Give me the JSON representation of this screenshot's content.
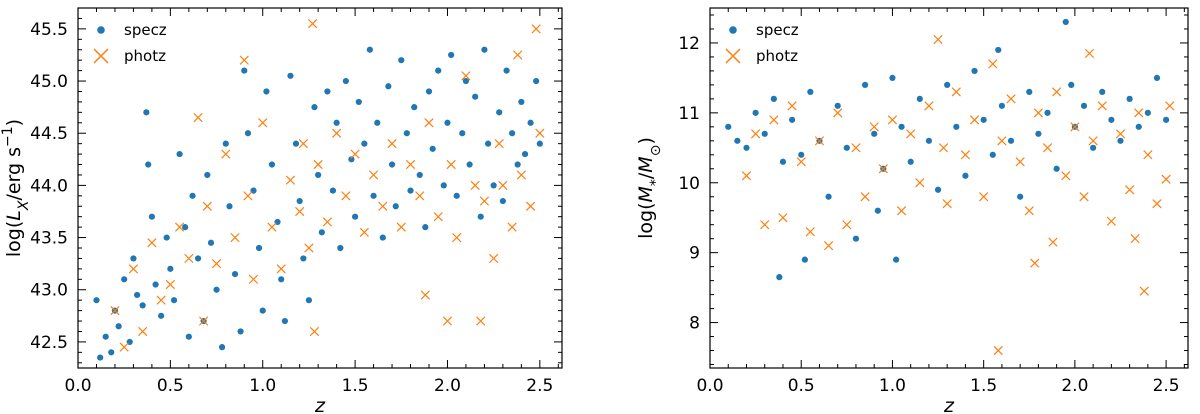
{
  "chart_data": [
    {
      "type": "scatter",
      "xlabel": "z",
      "ylabel": "log(L_X/erg s^-1)",
      "xlim": [
        0.0,
        2.62
      ],
      "ylim": [
        42.25,
        45.7
      ],
      "xticks": [
        "0.0",
        "0.5",
        "1.0",
        "1.5",
        "2.0",
        "2.5"
      ],
      "yticks": [
        "42.5",
        "43.0",
        "43.5",
        "44.0",
        "44.5",
        "45.0",
        "45.5"
      ],
      "legend_position": "top-left",
      "grid": false,
      "series": [
        {
          "name": "specz",
          "marker": "circle",
          "color": "#1f77b4",
          "points": [
            [
              0.1,
              42.9
            ],
            [
              0.12,
              42.35
            ],
            [
              0.15,
              42.55
            ],
            [
              0.18,
              42.4
            ],
            [
              0.2,
              42.8
            ],
            [
              0.22,
              42.65
            ],
            [
              0.25,
              43.1
            ],
            [
              0.28,
              42.5
            ],
            [
              0.3,
              43.3
            ],
            [
              0.32,
              42.95
            ],
            [
              0.35,
              42.85
            ],
            [
              0.37,
              44.7
            ],
            [
              0.38,
              44.2
            ],
            [
              0.4,
              43.7
            ],
            [
              0.42,
              43.05
            ],
            [
              0.45,
              42.75
            ],
            [
              0.48,
              43.5
            ],
            [
              0.5,
              43.2
            ],
            [
              0.52,
              42.9
            ],
            [
              0.55,
              44.3
            ],
            [
              0.58,
              43.6
            ],
            [
              0.6,
              42.55
            ],
            [
              0.62,
              43.9
            ],
            [
              0.65,
              43.3
            ],
            [
              0.68,
              42.7
            ],
            [
              0.7,
              44.1
            ],
            [
              0.72,
              43.45
            ],
            [
              0.75,
              43.0
            ],
            [
              0.78,
              42.45
            ],
            [
              0.8,
              44.4
            ],
            [
              0.82,
              43.8
            ],
            [
              0.85,
              43.15
            ],
            [
              0.88,
              42.6
            ],
            [
              0.9,
              45.1
            ],
            [
              0.92,
              44.5
            ],
            [
              0.95,
              43.95
            ],
            [
              0.98,
              43.4
            ],
            [
              1.0,
              42.8
            ],
            [
              1.02,
              44.9
            ],
            [
              1.05,
              44.2
            ],
            [
              1.08,
              43.65
            ],
            [
              1.1,
              43.1
            ],
            [
              1.12,
              42.7
            ],
            [
              1.15,
              45.05
            ],
            [
              1.18,
              44.4
            ],
            [
              1.2,
              43.85
            ],
            [
              1.22,
              43.3
            ],
            [
              1.25,
              42.9
            ],
            [
              1.28,
              44.75
            ],
            [
              1.3,
              44.1
            ],
            [
              1.32,
              43.55
            ],
            [
              1.35,
              44.9
            ],
            [
              1.38,
              43.95
            ],
            [
              1.4,
              44.6
            ],
            [
              1.42,
              43.4
            ],
            [
              1.45,
              45.0
            ],
            [
              1.48,
              44.25
            ],
            [
              1.5,
              43.7
            ],
            [
              1.52,
              44.8
            ],
            [
              1.55,
              44.4
            ],
            [
              1.58,
              45.3
            ],
            [
              1.6,
              43.9
            ],
            [
              1.62,
              44.6
            ],
            [
              1.65,
              43.5
            ],
            [
              1.68,
              44.95
            ],
            [
              1.7,
              44.2
            ],
            [
              1.72,
              43.8
            ],
            [
              1.75,
              45.2
            ],
            [
              1.78,
              44.5
            ],
            [
              1.8,
              43.95
            ],
            [
              1.82,
              44.75
            ],
            [
              1.85,
              44.1
            ],
            [
              1.88,
              43.6
            ],
            [
              1.9,
              44.9
            ],
            [
              1.92,
              44.35
            ],
            [
              1.95,
              45.1
            ],
            [
              1.98,
              44.0
            ],
            [
              2.0,
              44.6
            ],
            [
              2.02,
              45.25
            ],
            [
              2.05,
              43.9
            ],
            [
              2.08,
              44.5
            ],
            [
              2.1,
              45.0
            ],
            [
              2.12,
              44.2
            ],
            [
              2.15,
              44.85
            ],
            [
              2.18,
              43.7
            ],
            [
              2.2,
              45.3
            ],
            [
              2.22,
              44.4
            ],
            [
              2.25,
              44.0
            ],
            [
              2.28,
              44.7
            ],
            [
              2.3,
              43.85
            ],
            [
              2.32,
              45.1
            ],
            [
              2.35,
              44.5
            ],
            [
              2.38,
              44.2
            ],
            [
              2.4,
              44.8
            ],
            [
              2.42,
              44.3
            ],
            [
              2.45,
              44.6
            ],
            [
              2.48,
              45.0
            ],
            [
              2.5,
              44.4
            ]
          ]
        },
        {
          "name": "photz",
          "marker": "x",
          "color": "#ff7f0e",
          "points": [
            [
              0.2,
              42.8
            ],
            [
              0.25,
              42.45
            ],
            [
              0.3,
              43.2
            ],
            [
              0.35,
              42.6
            ],
            [
              0.4,
              43.45
            ],
            [
              0.45,
              42.9
            ],
            [
              0.5,
              43.05
            ],
            [
              0.55,
              43.6
            ],
            [
              0.6,
              43.3
            ],
            [
              0.65,
              44.65
            ],
            [
              0.68,
              42.7
            ],
            [
              0.7,
              43.8
            ],
            [
              0.75,
              43.25
            ],
            [
              0.8,
              44.3
            ],
            [
              0.85,
              43.5
            ],
            [
              0.9,
              45.2
            ],
            [
              0.92,
              43.9
            ],
            [
              0.95,
              43.1
            ],
            [
              1.0,
              44.6
            ],
            [
              1.05,
              43.6
            ],
            [
              1.1,
              43.2
            ],
            [
              1.15,
              44.05
            ],
            [
              1.2,
              43.75
            ],
            [
              1.22,
              44.4
            ],
            [
              1.25,
              43.4
            ],
            [
              1.27,
              45.55
            ],
            [
              1.28,
              42.6
            ],
            [
              1.3,
              44.2
            ],
            [
              1.35,
              43.65
            ],
            [
              1.4,
              44.5
            ],
            [
              1.45,
              43.9
            ],
            [
              1.5,
              44.3
            ],
            [
              1.55,
              43.55
            ],
            [
              1.6,
              44.1
            ],
            [
              1.65,
              43.8
            ],
            [
              1.7,
              44.4
            ],
            [
              1.75,
              43.6
            ],
            [
              1.8,
              44.2
            ],
            [
              1.85,
              43.9
            ],
            [
              1.88,
              42.95
            ],
            [
              1.9,
              44.6
            ],
            [
              1.95,
              43.7
            ],
            [
              2.0,
              42.7
            ],
            [
              2.02,
              44.2
            ],
            [
              2.05,
              43.5
            ],
            [
              2.1,
              45.05
            ],
            [
              2.15,
              44.0
            ],
            [
              2.18,
              42.7
            ],
            [
              2.2,
              43.85
            ],
            [
              2.25,
              43.3
            ],
            [
              2.28,
              44.4
            ],
            [
              2.3,
              44.0
            ],
            [
              2.35,
              43.6
            ],
            [
              2.38,
              45.25
            ],
            [
              2.4,
              44.1
            ],
            [
              2.45,
              43.8
            ],
            [
              2.48,
              45.5
            ],
            [
              2.5,
              44.5
            ]
          ]
        }
      ]
    },
    {
      "type": "scatter",
      "xlabel": "z",
      "ylabel": "log(M_*/M_⊙)",
      "xlim": [
        0.0,
        2.62
      ],
      "ylim": [
        7.35,
        12.5
      ],
      "xticks": [
        "0.0",
        "0.5",
        "1.0",
        "1.5",
        "2.0",
        "2.5"
      ],
      "yticks": [
        "8",
        "9",
        "10",
        "11",
        "12"
      ],
      "legend_position": "top-left",
      "grid": false,
      "series": [
        {
          "name": "specz",
          "marker": "circle",
          "color": "#1f77b4",
          "points": [
            [
              0.1,
              10.8
            ],
            [
              0.15,
              10.6
            ],
            [
              0.2,
              10.5
            ],
            [
              0.25,
              11.0
            ],
            [
              0.3,
              10.7
            ],
            [
              0.35,
              11.2
            ],
            [
              0.38,
              8.65
            ],
            [
              0.4,
              10.3
            ],
            [
              0.45,
              10.9
            ],
            [
              0.5,
              10.4
            ],
            [
              0.52,
              8.9
            ],
            [
              0.55,
              11.3
            ],
            [
              0.6,
              10.6
            ],
            [
              0.65,
              9.8
            ],
            [
              0.7,
              11.1
            ],
            [
              0.75,
              10.5
            ],
            [
              0.8,
              9.2
            ],
            [
              0.85,
              11.4
            ],
            [
              0.9,
              10.7
            ],
            [
              0.92,
              9.6
            ],
            [
              0.95,
              10.2
            ],
            [
              1.0,
              11.5
            ],
            [
              1.02,
              8.9
            ],
            [
              1.05,
              10.8
            ],
            [
              1.1,
              10.3
            ],
            [
              1.15,
              11.2
            ],
            [
              1.2,
              10.6
            ],
            [
              1.25,
              9.9
            ],
            [
              1.3,
              11.4
            ],
            [
              1.35,
              10.8
            ],
            [
              1.4,
              10.1
            ],
            [
              1.45,
              11.6
            ],
            [
              1.5,
              10.9
            ],
            [
              1.55,
              10.4
            ],
            [
              1.58,
              11.9
            ],
            [
              1.6,
              11.1
            ],
            [
              1.65,
              10.6
            ],
            [
              1.7,
              9.8
            ],
            [
              1.75,
              11.3
            ],
            [
              1.8,
              10.7
            ],
            [
              1.85,
              11.0
            ],
            [
              1.9,
              10.2
            ],
            [
              1.95,
              12.3
            ],
            [
              1.98,
              11.4
            ],
            [
              2.0,
              10.8
            ],
            [
              2.05,
              11.1
            ],
            [
              2.1,
              10.5
            ],
            [
              2.15,
              11.3
            ],
            [
              2.2,
              10.9
            ],
            [
              2.25,
              10.6
            ],
            [
              2.3,
              11.2
            ],
            [
              2.35,
              10.8
            ],
            [
              2.4,
              11.0
            ],
            [
              2.45,
              11.5
            ],
            [
              2.5,
              10.9
            ]
          ]
        },
        {
          "name": "photz",
          "marker": "x",
          "color": "#ff7f0e",
          "points": [
            [
              0.2,
              10.1
            ],
            [
              0.25,
              10.7
            ],
            [
              0.3,
              9.4
            ],
            [
              0.35,
              10.9
            ],
            [
              0.4,
              9.5
            ],
            [
              0.45,
              11.1
            ],
            [
              0.5,
              10.3
            ],
            [
              0.55,
              9.3
            ],
            [
              0.6,
              10.6
            ],
            [
              0.65,
              9.1
            ],
            [
              0.7,
              11.0
            ],
            [
              0.75,
              9.4
            ],
            [
              0.8,
              10.5
            ],
            [
              0.85,
              9.8
            ],
            [
              0.9,
              10.8
            ],
            [
              0.95,
              10.2
            ],
            [
              1.0,
              10.9
            ],
            [
              1.05,
              9.6
            ],
            [
              1.1,
              10.7
            ],
            [
              1.15,
              10.0
            ],
            [
              1.2,
              11.1
            ],
            [
              1.25,
              12.05
            ],
            [
              1.28,
              10.5
            ],
            [
              1.3,
              9.7
            ],
            [
              1.35,
              11.3
            ],
            [
              1.4,
              10.4
            ],
            [
              1.45,
              10.9
            ],
            [
              1.5,
              9.8
            ],
            [
              1.55,
              11.7
            ],
            [
              1.58,
              7.6
            ],
            [
              1.6,
              10.6
            ],
            [
              1.65,
              11.2
            ],
            [
              1.7,
              10.3
            ],
            [
              1.75,
              9.6
            ],
            [
              1.78,
              8.85
            ],
            [
              1.8,
              11.0
            ],
            [
              1.85,
              10.5
            ],
            [
              1.88,
              9.15
            ],
            [
              1.9,
              11.3
            ],
            [
              1.95,
              10.1
            ],
            [
              2.0,
              10.8
            ],
            [
              2.05,
              9.8
            ],
            [
              2.08,
              11.85
            ],
            [
              2.1,
              10.6
            ],
            [
              2.15,
              11.1
            ],
            [
              2.2,
              9.45
            ],
            [
              2.25,
              10.7
            ],
            [
              2.3,
              9.9
            ],
            [
              2.33,
              9.2
            ],
            [
              2.35,
              11.0
            ],
            [
              2.38,
              8.45
            ],
            [
              2.4,
              10.4
            ],
            [
              2.45,
              9.7
            ],
            [
              2.5,
              10.05
            ],
            [
              2.52,
              11.1
            ]
          ]
        }
      ]
    }
  ]
}
